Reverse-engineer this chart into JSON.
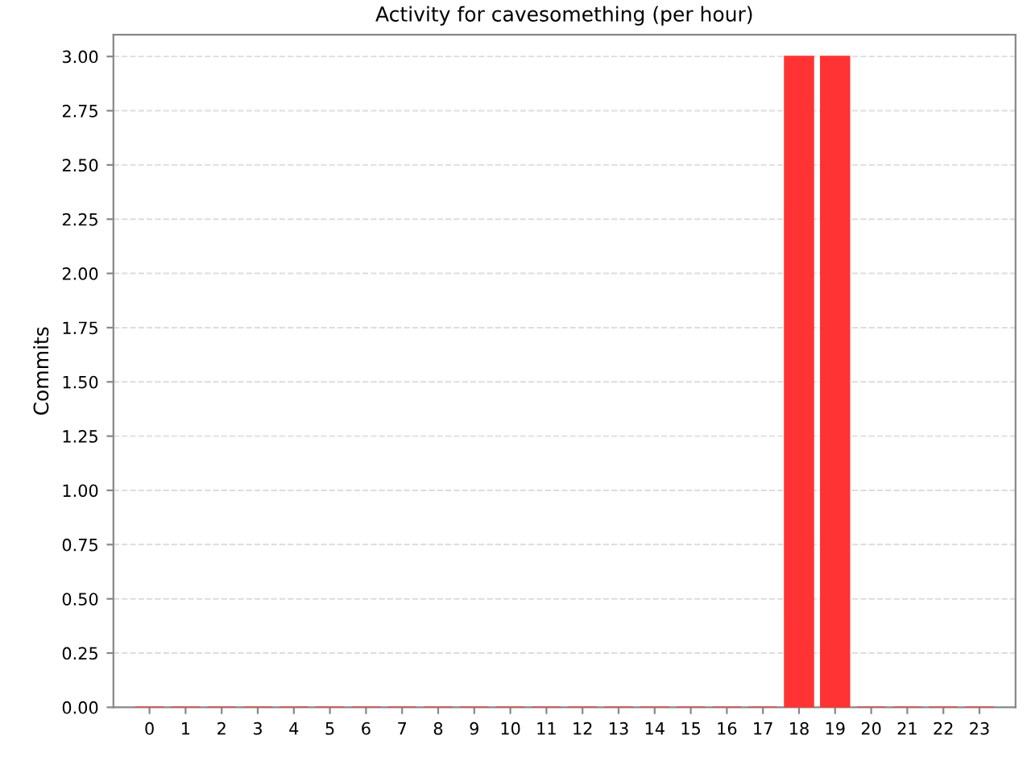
{
  "chart_data": {
    "type": "bar",
    "title": "Activity for cavesomething (per hour)",
    "ylabel": "Commits",
    "categories": [
      "0",
      "1",
      "2",
      "3",
      "4",
      "5",
      "6",
      "7",
      "8",
      "9",
      "10",
      "11",
      "12",
      "13",
      "14",
      "15",
      "16",
      "17",
      "18",
      "19",
      "20",
      "21",
      "22",
      "23"
    ],
    "values": [
      0,
      0,
      0,
      0,
      0,
      0,
      0,
      0,
      0,
      0,
      0,
      0,
      0,
      0,
      0,
      0,
      0,
      0,
      3,
      3,
      0,
      0,
      0,
      0
    ],
    "color": "#ff3333",
    "ylim": [
      0,
      3.1
    ],
    "yticks": [
      {
        "value": 0,
        "label": "0.00"
      },
      {
        "value": 0.25,
        "label": "0.25"
      },
      {
        "value": 0.5,
        "label": "0.50"
      },
      {
        "value": 0.75,
        "label": "0.75"
      },
      {
        "value": 1,
        "label": "1.00"
      },
      {
        "value": 1.25,
        "label": "1.25"
      },
      {
        "value": 1.5,
        "label": "1.50"
      },
      {
        "value": 1.75,
        "label": "1.75"
      },
      {
        "value": 2,
        "label": "2.00"
      },
      {
        "value": 2.25,
        "label": "2.25"
      },
      {
        "value": 2.5,
        "label": "2.50"
      },
      {
        "value": 2.75,
        "label": "2.75"
      },
      {
        "value": 3,
        "label": "3.00"
      }
    ],
    "grid": "y"
  }
}
